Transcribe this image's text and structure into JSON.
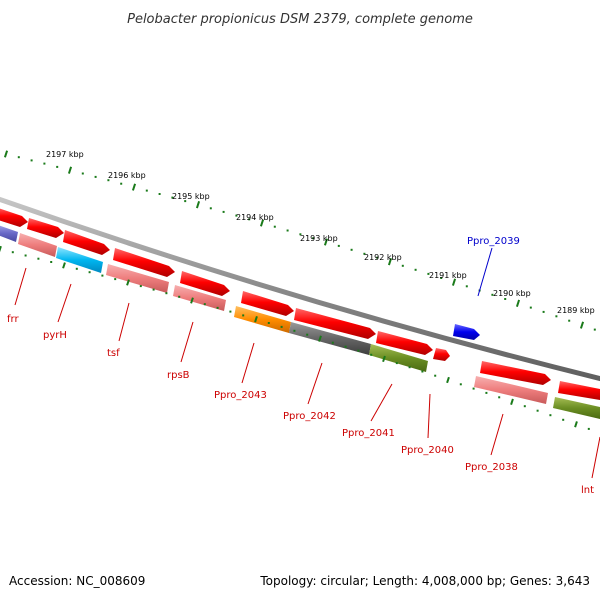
{
  "title": "Pelobacter propionicus DSM 2379, complete genome",
  "accession_text": "Accession: NC_008609",
  "summary_text": "Topology: circular; Length: 4,008,000 bp; Genes: 3,643",
  "colors": {
    "backbone": "#8a8a8a",
    "tick": "#1a7a1a",
    "label_red": "#cc0000",
    "label_blue": "#0000cc"
  },
  "scale_ticks": [
    {
      "label": "2197 kbp"
    },
    {
      "label": "2196 kbp"
    },
    {
      "label": "2195 kbp"
    },
    {
      "label": "2194 kbp"
    },
    {
      "label": "2193 kbp"
    },
    {
      "label": "2192 kbp"
    },
    {
      "label": "2191 kbp"
    },
    {
      "label": "2190 kbp"
    },
    {
      "label": "2189 kbp"
    }
  ],
  "gene_labels": [
    {
      "name": "frr",
      "color": "#cc0000"
    },
    {
      "name": "pyrH",
      "color": "#cc0000"
    },
    {
      "name": "tsf",
      "color": "#cc0000"
    },
    {
      "name": "rpsB",
      "color": "#cc0000"
    },
    {
      "name": "Ppro_2043",
      "color": "#cc0000"
    },
    {
      "name": "Ppro_2042",
      "color": "#cc0000"
    },
    {
      "name": "Ppro_2041",
      "color": "#cc0000"
    },
    {
      "name": "Ppro_2040",
      "color": "#cc0000"
    },
    {
      "name": "Ppro_2039",
      "color": "#0000cc"
    },
    {
      "name": "Ppro_2038",
      "color": "#cc0000"
    },
    {
      "name": "lnt",
      "color": "#cc0000"
    }
  ]
}
